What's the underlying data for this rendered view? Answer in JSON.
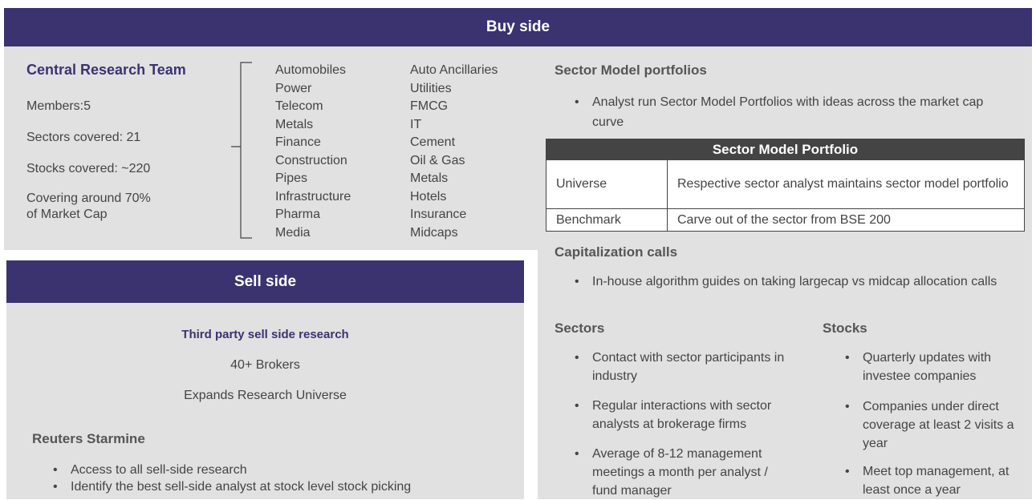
{
  "buy_side": {
    "title": "Buy side",
    "central_research": {
      "title": "Central Research Team",
      "members": "Members:5",
      "sectors_covered": "Sectors covered: 21",
      "stocks_covered": "Stocks covered: ~220",
      "coverage": "Covering around 70% of Market Cap"
    },
    "sector_list": [
      [
        "Automobiles",
        "Power",
        "Telecom",
        "Metals",
        "Finance",
        "Construction",
        "Pipes",
        "Infrastructure",
        "Pharma",
        "Media"
      ],
      [
        "Auto Ancillaries",
        "Utilities",
        "FMCG",
        "IT",
        "Cement",
        "Oil & Gas",
        "Metals",
        "Hotels",
        "Insurance",
        "Midcaps"
      ]
    ],
    "sector_model": {
      "title": "Sector Model portfolios",
      "bullets": [
        "Analyst run Sector Model Portfolios with ideas across the market cap curve"
      ]
    },
    "table": {
      "title": "Sector Model Portfolio",
      "rows": [
        [
          "Universe",
          "Respective sector analyst maintains sector model portfolio"
        ],
        [
          "Benchmark",
          "Carve out of the sector from BSE 200"
        ]
      ]
    },
    "capitalization": {
      "title": "Capitalization calls",
      "bullets": [
        "In-house algorithm guides on taking largecap vs midcap allocation calls"
      ]
    },
    "sectors": {
      "title": "Sectors",
      "bullets": [
        "Contact with sector participants in industry",
        "Regular interactions with sector analysts at brokerage firms",
        "Average of 8-12 management meetings a month per analyst / fund manager"
      ]
    },
    "stocks": {
      "title": "Stocks",
      "bullets": [
        "Quarterly updates with investee companies",
        "Companies under direct coverage at least 2 visits a year",
        "Meet top management, at least once a year"
      ]
    }
  },
  "sell_side": {
    "title": "Sell side",
    "third_party": {
      "title": "Third party sell side research",
      "lines": [
        "40+ Brokers",
        "Expands Research Universe"
      ]
    },
    "starmine": {
      "title": "Reuters Starmine",
      "bullets": [
        "Access to all sell-side research",
        "Identify the best sell-side analyst at stock level stock picking"
      ]
    }
  }
}
